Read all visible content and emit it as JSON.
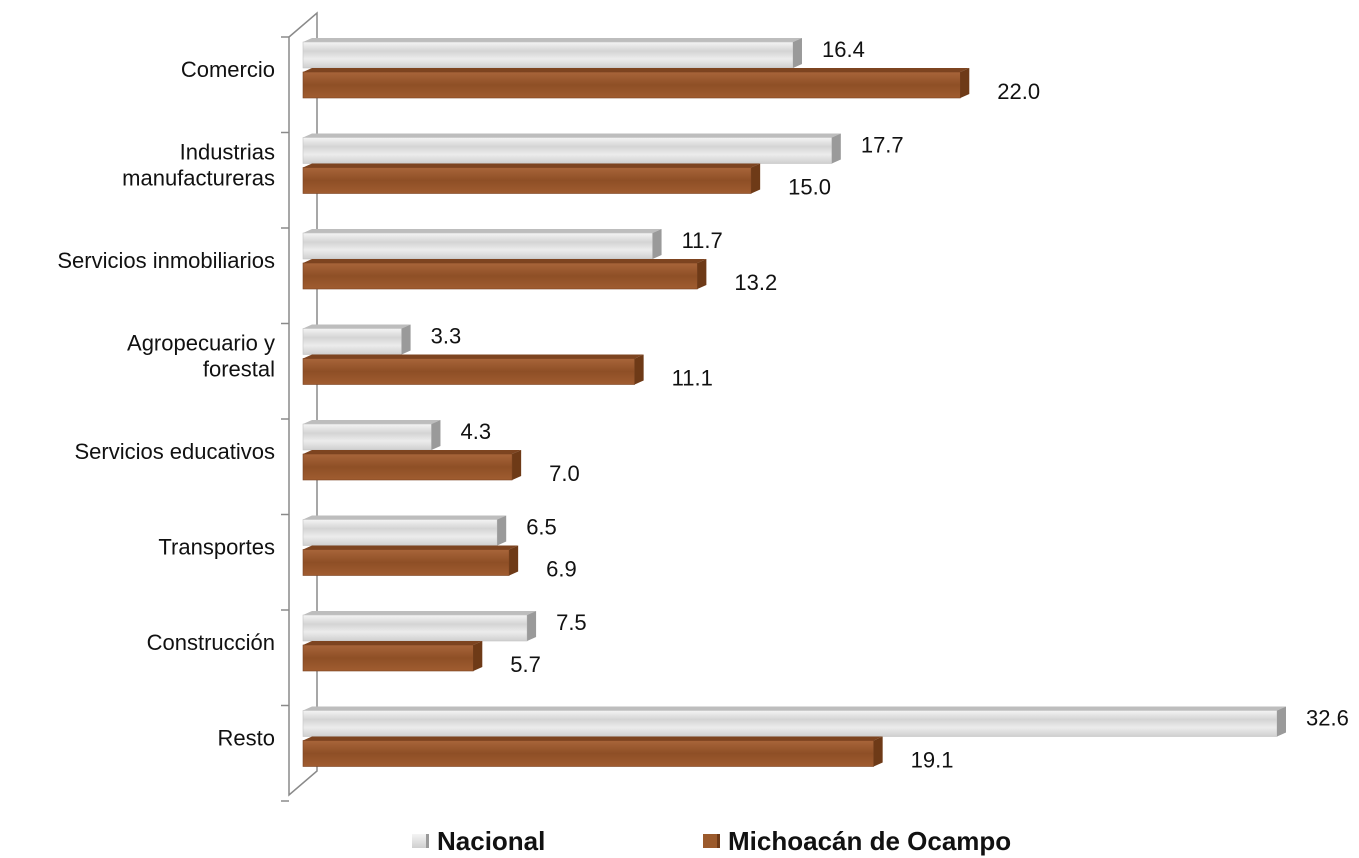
{
  "chart_data": {
    "type": "bar",
    "orientation": "horizontal",
    "categories": [
      [
        "Comercio"
      ],
      [
        "Industrias",
        "manufactureras"
      ],
      [
        "Servicios inmobiliarios"
      ],
      [
        "Agropecuario y",
        "forestal"
      ],
      [
        "Servicios educativos"
      ],
      [
        "Transportes"
      ],
      [
        "Construcción"
      ],
      [
        "Resto"
      ]
    ],
    "series": [
      {
        "name": "Nacional",
        "color": "#e3e3e3",
        "values": [
          16.4,
          17.7,
          11.7,
          3.3,
          4.3,
          6.5,
          7.5,
          32.6
        ],
        "labels": [
          "16.4",
          "17.7",
          "11.7",
          "3.3",
          "4.3",
          "6.5",
          "7.5",
          "32.6"
        ]
      },
      {
        "name": "Michoacán  de Ocampo",
        "color": "#9b5a2c",
        "values": [
          22.0,
          15.0,
          13.2,
          11.1,
          7.0,
          6.9,
          5.7,
          19.1
        ],
        "labels": [
          "22.0",
          "15.0",
          "13.2",
          "11.1",
          "7.0",
          "6.9",
          "5.7",
          "19.1"
        ]
      }
    ],
    "xlim": [
      0,
      32.6
    ],
    "grid": false,
    "legend_position": "bottom"
  },
  "legend": {
    "nacional": "Nacional",
    "michoacan": "Michoacán  de Ocampo"
  }
}
